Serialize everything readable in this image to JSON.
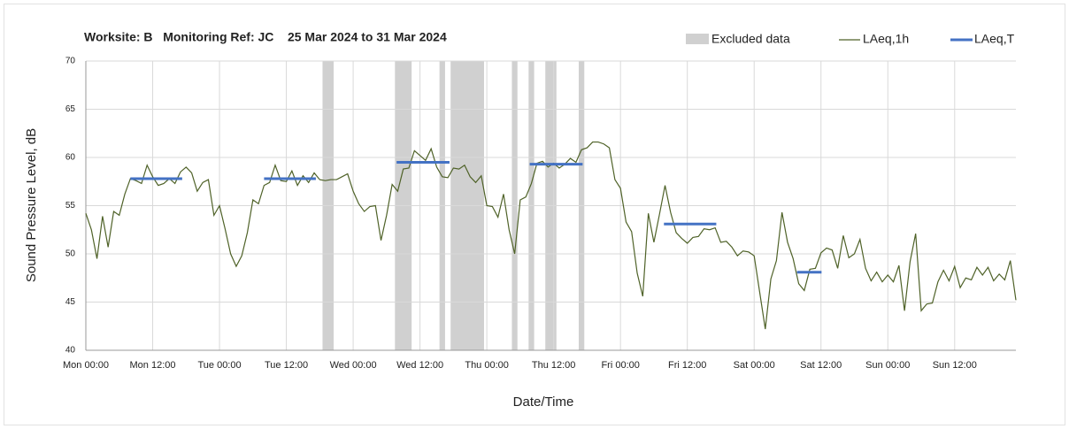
{
  "chart_data": {
    "type": "line",
    "title": "Worksite: B   Monitoring Ref: JC    25 Mar 2024 to 31 Mar 2024",
    "xlabel": "Date/Time",
    "ylabel": "Sound Pressure Level, dB",
    "xlim": [
      0,
      167
    ],
    "ylim": [
      40,
      70
    ],
    "xticks": [
      {
        "value": 0,
        "label": "Mon 00:00"
      },
      {
        "value": 12,
        "label": "Mon 12:00"
      },
      {
        "value": 24,
        "label": "Tue 00:00"
      },
      {
        "value": 36,
        "label": "Tue 12:00"
      },
      {
        "value": 48,
        "label": "Wed 00:00"
      },
      {
        "value": 60,
        "label": "Wed 12:00"
      },
      {
        "value": 72,
        "label": "Thu 00:00"
      },
      {
        "value": 84,
        "label": "Thu 12:00"
      },
      {
        "value": 96,
        "label": "Fri 00:00"
      },
      {
        "value": 108,
        "label": "Fri 12:00"
      },
      {
        "value": 120,
        "label": "Sat 00:00"
      },
      {
        "value": 132,
        "label": "Sat 12:00"
      },
      {
        "value": 144,
        "label": "Sun 00:00"
      },
      {
        "value": 156,
        "label": "Sun 12:00"
      }
    ],
    "yticks": [
      40,
      45,
      50,
      55,
      60,
      65,
      70
    ],
    "grid": true,
    "legend": "upper right",
    "excluded": {
      "name": "Excluded data",
      "color": "#d0d0d0",
      "ranges": [
        [
          42.5,
          44.5
        ],
        [
          55.5,
          58.5
        ],
        [
          63.5,
          64.5
        ],
        [
          65.5,
          71.5
        ],
        [
          76.5,
          77.5
        ],
        [
          79.5,
          80.5
        ],
        [
          82.5,
          84.5
        ],
        [
          88.5,
          89.5
        ]
      ]
    },
    "series": [
      {
        "name": "LAeq,1h",
        "color": "#4f6228",
        "x": [
          0,
          1,
          2,
          3,
          4,
          5,
          6,
          7,
          8,
          9,
          10,
          11,
          12,
          13,
          14,
          15,
          16,
          17,
          18,
          19,
          20,
          21,
          22,
          23,
          24,
          25,
          26,
          27,
          28,
          29,
          30,
          31,
          32,
          33,
          34,
          35,
          36,
          37,
          38,
          39,
          40,
          41,
          42,
          43,
          44,
          45,
          46,
          47,
          48,
          49,
          50,
          51,
          52,
          53,
          54,
          55,
          56,
          57,
          58,
          59,
          60,
          61,
          62,
          63,
          64,
          65,
          66,
          67,
          68,
          69,
          70,
          71,
          72,
          73,
          74,
          75,
          76,
          77,
          78,
          79,
          80,
          81,
          82,
          83,
          84,
          85,
          86,
          87,
          88,
          89,
          90,
          91,
          92,
          93,
          94,
          95,
          96,
          97,
          98,
          99,
          100,
          101,
          102,
          103,
          104,
          105,
          106,
          107,
          108,
          109,
          110,
          111,
          112,
          113,
          114,
          115,
          116,
          117,
          118,
          119,
          120,
          121,
          122,
          123,
          124,
          125,
          126,
          127,
          128,
          129,
          130,
          131,
          132,
          133,
          134,
          135,
          136,
          137,
          138,
          139,
          140,
          141,
          142,
          143,
          144,
          145,
          146,
          147,
          148,
          149,
          150,
          151,
          152,
          153,
          154,
          155,
          156,
          157,
          158,
          159,
          160,
          161,
          162,
          163,
          164,
          165,
          166,
          167
        ],
        "values": [
          54.2,
          52.5,
          49.5,
          53.9,
          50.7,
          54.4,
          54.0,
          56.2,
          57.8,
          57.6,
          57.3,
          59.2,
          58.0,
          57.1,
          57.3,
          57.8,
          57.3,
          58.5,
          59.0,
          58.4,
          56.5,
          57.4,
          57.7,
          54.0,
          55.0,
          52.6,
          50.0,
          48.7,
          49.8,
          52.2,
          55.6,
          55.2,
          57.1,
          57.4,
          59.2,
          57.6,
          57.5,
          58.6,
          57.1,
          58.1,
          57.4,
          58.4,
          57.7,
          57.6,
          57.7,
          57.7,
          58.0,
          58.3,
          56.5,
          55.2,
          54.4,
          54.9,
          55.0,
          51.4,
          54.0,
          57.2,
          56.5,
          58.8,
          58.9,
          60.7,
          60.2,
          59.7,
          60.9,
          59.0,
          58.0,
          57.9,
          58.9,
          58.8,
          59.2,
          58.0,
          57.4,
          58.1,
          55.0,
          54.9,
          53.8,
          56.2,
          52.5,
          50.0,
          55.6,
          55.9,
          57.3,
          59.4,
          59.6,
          59.0,
          59.4,
          58.9,
          59.3,
          59.9,
          59.5,
          60.8,
          61.0,
          61.6,
          61.6,
          61.4,
          61.0,
          57.7,
          56.8,
          53.3,
          52.3,
          48.0,
          45.6,
          54.2,
          51.2,
          54.1,
          57.1,
          54.3,
          52.2,
          51.6,
          51.1,
          51.7,
          51.8,
          52.6,
          52.5,
          52.7,
          51.2,
          51.3,
          50.7,
          49.8,
          50.3,
          50.2,
          49.8,
          46.0,
          42.2,
          47.4,
          49.3,
          54.3,
          51.2,
          49.5,
          46.9,
          46.2,
          48.4,
          48.5,
          50.1,
          50.6,
          50.4,
          48.5,
          51.9,
          49.6,
          50.0,
          51.5,
          48.5,
          47.2,
          48.1,
          47.1,
          47.8,
          47.1,
          48.8,
          44.1,
          49.2,
          52.1,
          44.1,
          44.8,
          44.9,
          47.1,
          48.3,
          47.2,
          48.7,
          46.5,
          47.5,
          47.3,
          48.6,
          47.8,
          48.6,
          47.2,
          47.9,
          47.3,
          49.3,
          45.2
        ]
      }
    ],
    "levels": {
      "name": "LAeq,T",
      "color": "#4472c4",
      "segments": [
        {
          "start": 8,
          "end": 17.3,
          "value": 57.8
        },
        {
          "start": 32,
          "end": 41.3,
          "value": 57.8
        },
        {
          "start": 55.8,
          "end": 65.3,
          "value": 59.5
        },
        {
          "start": 79.7,
          "end": 89.2,
          "value": 59.3
        },
        {
          "start": 103.8,
          "end": 113.2,
          "value": 53.1
        },
        {
          "start": 127.7,
          "end": 132.1,
          "value": 48.1
        }
      ]
    }
  }
}
